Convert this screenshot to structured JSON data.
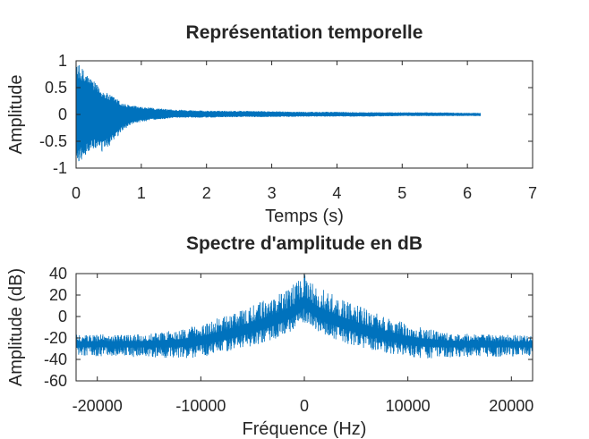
{
  "colors": {
    "series": "#0072BD",
    "axis": "#262626",
    "background": "#ffffff"
  },
  "chart_data": [
    {
      "type": "line",
      "title": "Représentation temporelle",
      "xlabel": "Temps (s)",
      "ylabel": "Amplitude",
      "xlim": [
        0,
        7
      ],
      "ylim": [
        -1,
        1
      ],
      "xticks": [
        0,
        1,
        2,
        3,
        4,
        5,
        6,
        7
      ],
      "xtick_labels": [
        "0",
        "1",
        "2",
        "3",
        "4",
        "5",
        "6",
        "7"
      ],
      "yticks": [
        1,
        0.5,
        0,
        -0.5,
        -1
      ],
      "ytick_labels": [
        "1",
        "0.5",
        "0",
        "-0.5",
        "-1"
      ],
      "grid": false,
      "box": true,
      "series": [
        {
          "style": "dense-oscillation",
          "t_end": 6.2,
          "envelope": {
            "t": [
              0,
              0.05,
              0.1,
              0.2,
              0.3,
              0.4,
              0.5,
              0.6,
              0.7,
              0.8,
              1.0,
              1.2,
              1.4,
              1.5,
              1.6,
              2.0,
              2.5,
              3.0,
              3.5,
              4.0,
              4.5,
              5.0,
              5.5,
              6.0,
              6.2
            ],
            "upper": [
              0.92,
              0.92,
              0.86,
              0.72,
              0.58,
              0.46,
              0.38,
              0.32,
              0.22,
              0.18,
              0.14,
              0.12,
              0.1,
              0.09,
              0.09,
              0.07,
              0.07,
              0.06,
              0.05,
              0.05,
              0.04,
              0.04,
              0.04,
              0.03,
              0.03
            ],
            "lower": [
              -0.92,
              -0.88,
              -0.84,
              -0.7,
              -0.64,
              -0.72,
              -0.6,
              -0.5,
              -0.32,
              -0.22,
              -0.14,
              -0.1,
              -0.08,
              -0.06,
              -0.06,
              -0.06,
              -0.05,
              -0.05,
              -0.04,
              -0.04,
              -0.04,
              -0.03,
              -0.03,
              -0.03,
              -0.03
            ]
          }
        }
      ]
    },
    {
      "type": "line",
      "title": "Spectre d'amplitude en dB",
      "xlabel": "Fréquence (Hz)",
      "ylabel": "Amplitude (dB)",
      "xlim": [
        -22050,
        22050
      ],
      "ylim": [
        -60,
        40
      ],
      "xticks": [
        -20000,
        -10000,
        0,
        10000,
        20000
      ],
      "xtick_labels": [
        "-20000",
        "-10000",
        "0",
        "10000",
        "20000"
      ],
      "yticks": [
        40,
        20,
        0,
        -20,
        -40,
        -60
      ],
      "ytick_labels": [
        "40",
        "20",
        "0",
        "-20",
        "-40",
        "-60"
      ],
      "grid": false,
      "box": true,
      "series": [
        {
          "style": "dense-spectrum",
          "profile": {
            "f": [
              -22050,
              -15000,
              -12000,
              -10000,
              -8000,
              -6000,
              -4000,
              -2000,
              -1000,
              0,
              1000,
              2000,
              4000,
              6000,
              8000,
              10000,
              12000,
              15000,
              22050
            ],
            "center": [
              -25,
              -25,
              -24,
              -22,
              -18,
              -13,
              -7,
              0,
              5,
              13,
              5,
              0,
              -7,
              -13,
              -18,
              -22,
              -24,
              -25,
              -25
            ],
            "spread_high": [
              8,
              9,
              12,
              15,
              18,
              20,
              22,
              24,
              25,
              27,
              25,
              24,
              22,
              20,
              18,
              15,
              12,
              9,
              8
            ],
            "spread_low": [
              12,
              13,
              15,
              16,
              16,
              17,
              18,
              18,
              18,
              18,
              18,
              18,
              18,
              17,
              16,
              16,
              15,
              13,
              12
            ]
          },
          "peak": 40,
          "floor": -45
        }
      ]
    }
  ]
}
